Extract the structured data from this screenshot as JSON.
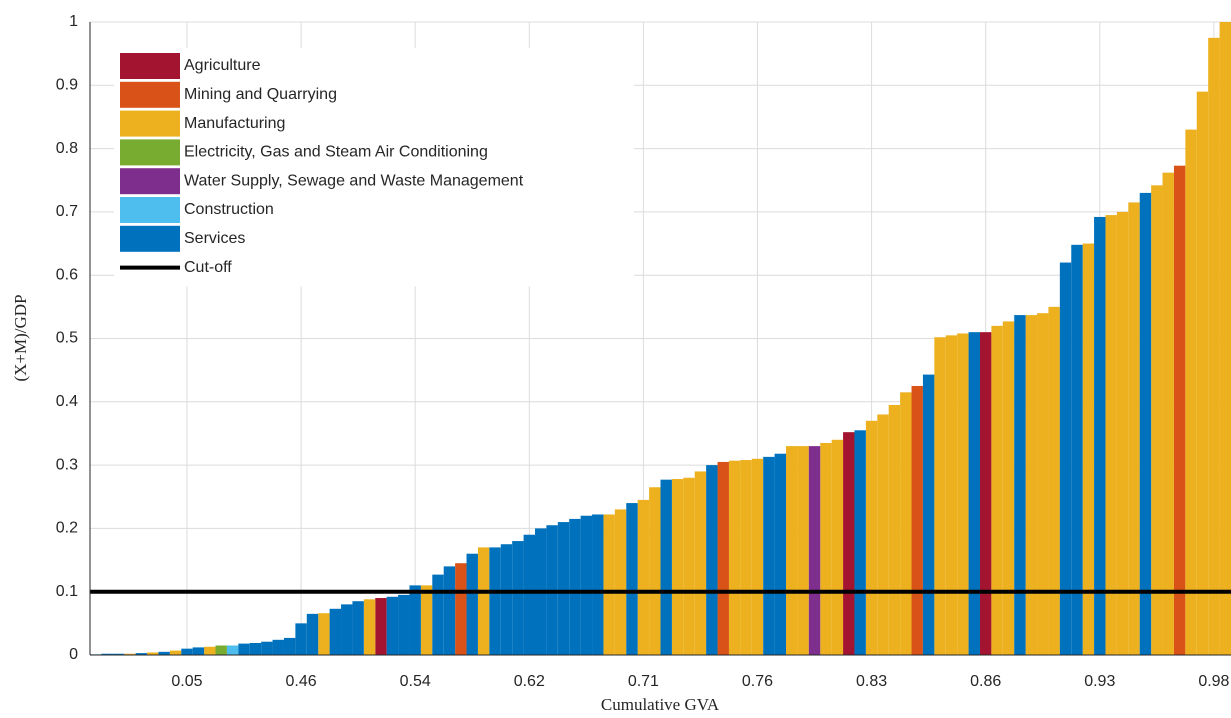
{
  "chart_data": {
    "type": "bar",
    "xlabel": "Cumulative GVA",
    "ylabel": "(X+M)/GDP",
    "xlim": [
      0,
      100
    ],
    "ylim": [
      0,
      1
    ],
    "xticks": [
      {
        "value": 8.5,
        "label": "0.05"
      },
      {
        "value": 18.5,
        "label": "0.46"
      },
      {
        "value": 28.5,
        "label": "0.54"
      },
      {
        "value": 38.5,
        "label": "0.62"
      },
      {
        "value": 48.5,
        "label": "0.71"
      },
      {
        "value": 58.5,
        "label": "0.76"
      },
      {
        "value": 68.5,
        "label": "0.83"
      },
      {
        "value": 78.5,
        "label": "0.86"
      },
      {
        "value": 88.5,
        "label": "0.93"
      },
      {
        "value": 98.5,
        "label": "0.98"
      }
    ],
    "yticks": [
      0,
      0.1,
      0.2,
      0.3,
      0.4,
      0.5,
      0.6,
      0.7,
      0.8,
      0.9,
      1
    ],
    "grid": true,
    "legend": "upper left",
    "series": [
      {
        "name": "Agriculture",
        "color": "#a2142f",
        "values": [
          null,
          null,
          null,
          null,
          null,
          null,
          null,
          null,
          null,
          null,
          null,
          null,
          null,
          null,
          null,
          null,
          null,
          null,
          null,
          null,
          null,
          null,
          null,
          null,
          null,
          0.09,
          null,
          null,
          null,
          null,
          null,
          null,
          null,
          null,
          null,
          null,
          null,
          null,
          null,
          null,
          null,
          null,
          null,
          null,
          null,
          null,
          null,
          null,
          null,
          null,
          null,
          null,
          null,
          null,
          null,
          null,
          null,
          null,
          null,
          null,
          null,
          null,
          null,
          null,
          null,
          null,
          0.352,
          null,
          null,
          null,
          null,
          null,
          null,
          null,
          null,
          null,
          null,
          null,
          0.51,
          null,
          null,
          null,
          null,
          null,
          null,
          null,
          null,
          null,
          null,
          null,
          null,
          null,
          null,
          null,
          null,
          null,
          null,
          null,
          null,
          null
        ]
      },
      {
        "name": "Mining and Quarrying",
        "color": "#d95319",
        "values": [
          null,
          null,
          null,
          null,
          null,
          null,
          null,
          null,
          null,
          null,
          null,
          null,
          null,
          null,
          null,
          null,
          null,
          null,
          null,
          null,
          null,
          null,
          null,
          null,
          null,
          null,
          null,
          null,
          null,
          null,
          null,
          null,
          0.145,
          null,
          null,
          null,
          null,
          null,
          null,
          null,
          null,
          null,
          null,
          null,
          null,
          null,
          null,
          null,
          null,
          null,
          null,
          null,
          null,
          null,
          null,
          0.305,
          null,
          null,
          null,
          null,
          null,
          null,
          null,
          null,
          null,
          null,
          null,
          null,
          null,
          null,
          null,
          null,
          0.425,
          null,
          null,
          null,
          null,
          null,
          null,
          null,
          null,
          null,
          null,
          null,
          null,
          null,
          null,
          null,
          null,
          null,
          null,
          null,
          null,
          null,
          null,
          0.773,
          null,
          null,
          null,
          null
        ]
      },
      {
        "name": "Manufacturing",
        "color": "#edb120",
        "values": [
          null,
          null,
          null,
          0.002,
          null,
          0.004,
          null,
          0.007,
          null,
          null,
          0.013,
          null,
          null,
          null,
          null,
          null,
          null,
          null,
          null,
          null,
          0.066,
          null,
          null,
          null,
          0.088,
          null,
          null,
          null,
          null,
          0.11,
          null,
          null,
          null,
          null,
          0.17,
          null,
          null,
          null,
          null,
          null,
          null,
          null,
          null,
          null,
          null,
          0.222,
          0.23,
          null,
          0.245,
          0.265,
          null,
          0.278,
          0.28,
          0.29,
          null,
          null,
          0.307,
          0.308,
          0.31,
          null,
          null,
          0.33,
          0.33,
          null,
          0.335,
          0.34,
          null,
          null,
          0.37,
          0.38,
          0.395,
          0.415,
          null,
          null,
          0.502,
          0.505,
          0.508,
          null,
          null,
          0.52,
          0.527,
          null,
          0.537,
          0.54,
          0.55,
          null,
          null,
          0.65,
          null,
          0.695,
          0.7,
          0.715,
          null,
          0.742,
          0.762,
          null,
          0.83,
          0.89,
          0.975,
          1.0
        ]
      },
      {
        "name": "Electricity, Gas and Steam Air Conditioning",
        "color": "#77ac30",
        "values": [
          null,
          null,
          null,
          null,
          null,
          null,
          null,
          null,
          null,
          null,
          null,
          0.015,
          null,
          null,
          null,
          null,
          null,
          null,
          null,
          null,
          null,
          null,
          null,
          null,
          null,
          null,
          null,
          null,
          null,
          null,
          null,
          null,
          null,
          null,
          null,
          null,
          null,
          null,
          null,
          null,
          null,
          null,
          null,
          null,
          null,
          null,
          null,
          null,
          null,
          null,
          null,
          null,
          null,
          null,
          null,
          null,
          null,
          null,
          null,
          null,
          null,
          null,
          null,
          null,
          null,
          null,
          null,
          null,
          null,
          null,
          null,
          null,
          null,
          null,
          null,
          null,
          null,
          null,
          null,
          null,
          null,
          null,
          null,
          null,
          null,
          null,
          null,
          null,
          null,
          null,
          null,
          null,
          null,
          null,
          null,
          null,
          null,
          null,
          null,
          null
        ]
      },
      {
        "name": "Water Supply, Sewage and Waste Management",
        "color": "#7e2f8e",
        "values": [
          null,
          null,
          null,
          null,
          null,
          null,
          null,
          null,
          null,
          null,
          null,
          null,
          null,
          null,
          null,
          null,
          null,
          null,
          null,
          null,
          null,
          null,
          null,
          null,
          null,
          null,
          null,
          null,
          null,
          null,
          null,
          null,
          null,
          null,
          null,
          null,
          null,
          null,
          null,
          null,
          null,
          null,
          null,
          null,
          null,
          null,
          null,
          null,
          null,
          null,
          null,
          null,
          null,
          null,
          null,
          null,
          null,
          null,
          null,
          null,
          null,
          null,
          null,
          0.33,
          null,
          null,
          null,
          null,
          null,
          null,
          null,
          null,
          null,
          null,
          null,
          null,
          null,
          null,
          null,
          null,
          null,
          null,
          null,
          null,
          null,
          null,
          null,
          null,
          null,
          null,
          null,
          null,
          null,
          null,
          null,
          null,
          null,
          null,
          null,
          null
        ]
      },
      {
        "name": "Construction",
        "color": "#4dbeee",
        "values": [
          null,
          null,
          null,
          null,
          null,
          null,
          null,
          null,
          null,
          null,
          null,
          null,
          0.015,
          null,
          null,
          null,
          null,
          null,
          null,
          null,
          null,
          null,
          null,
          null,
          null,
          null,
          null,
          null,
          null,
          null,
          null,
          null,
          null,
          null,
          null,
          null,
          null,
          null,
          null,
          null,
          null,
          null,
          null,
          null,
          null,
          null,
          null,
          null,
          null,
          null,
          null,
          null,
          null,
          null,
          null,
          null,
          null,
          null,
          null,
          null,
          null,
          null,
          null,
          null,
          null,
          null,
          null,
          null,
          null,
          null,
          null,
          null,
          null,
          null,
          null,
          null,
          null,
          null,
          null,
          null,
          null,
          null,
          null,
          null,
          null,
          null,
          null,
          null,
          null,
          null,
          null,
          null,
          null,
          null,
          null,
          null,
          null,
          null,
          null,
          null
        ]
      },
      {
        "name": "Services",
        "color": "#0072bd",
        "values": [
          0.001,
          0.002,
          0.002,
          null,
          0.003,
          null,
          0.005,
          null,
          0.01,
          0.012,
          null,
          null,
          null,
          0.018,
          0.019,
          0.021,
          0.024,
          0.027,
          0.05,
          0.065,
          null,
          0.073,
          0.08,
          0.085,
          null,
          null,
          0.092,
          0.095,
          0.11,
          null,
          0.127,
          0.14,
          null,
          0.16,
          null,
          0.17,
          0.175,
          0.18,
          0.19,
          0.2,
          0.205,
          0.21,
          0.215,
          0.22,
          0.222,
          null,
          null,
          0.24,
          null,
          null,
          0.277,
          null,
          null,
          null,
          0.3,
          null,
          null,
          null,
          null,
          0.313,
          0.318,
          null,
          null,
          null,
          null,
          null,
          null,
          0.355,
          null,
          null,
          null,
          null,
          null,
          0.443,
          null,
          null,
          null,
          0.51,
          null,
          null,
          null,
          0.537,
          null,
          null,
          null,
          0.62,
          0.648,
          null,
          0.692,
          null,
          null,
          null,
          0.73,
          null,
          null,
          null,
          null,
          null,
          null,
          null
        ]
      }
    ],
    "cutoff": {
      "name": "Cut-off",
      "value": 0.1,
      "color": "#000000"
    }
  }
}
